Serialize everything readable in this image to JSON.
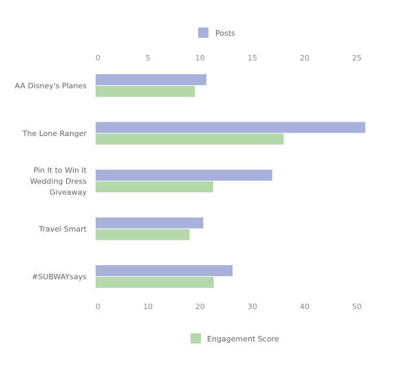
{
  "chart_data": {
    "type": "bar",
    "orientation": "horizontal",
    "categories": [
      [
        "AA Disney's Planes"
      ],
      [
        "The Lone Ranger"
      ],
      [
        "Pin It to Win It",
        "Wedding Dress",
        "Giveaway"
      ],
      [
        "Travel Smart"
      ],
      [
        "#SUBWAYsays"
      ]
    ],
    "series": [
      {
        "name": "Posts",
        "axis": "top",
        "color": "#a8b0dc",
        "values": [
          10.6,
          25.8,
          16.9,
          10.3,
          13.1
        ]
      },
      {
        "name": "Engagement Score",
        "axis": "bottom",
        "color": "#b5d8aa",
        "values": [
          19.0,
          36.0,
          22.5,
          18.0,
          22.6
        ]
      }
    ],
    "top_axis": {
      "min": 0,
      "max": 26,
      "ticks": [
        0,
        5,
        10,
        15,
        20,
        25
      ]
    },
    "bottom_axis": {
      "min": 0,
      "max": 52,
      "ticks": [
        0,
        10,
        20,
        30,
        40,
        50
      ]
    },
    "legend": {
      "top_label": "Posts",
      "bottom_label": "Engagement Score",
      "top_placement": "top",
      "bottom_placement": "bottom"
    },
    "grid": false
  }
}
